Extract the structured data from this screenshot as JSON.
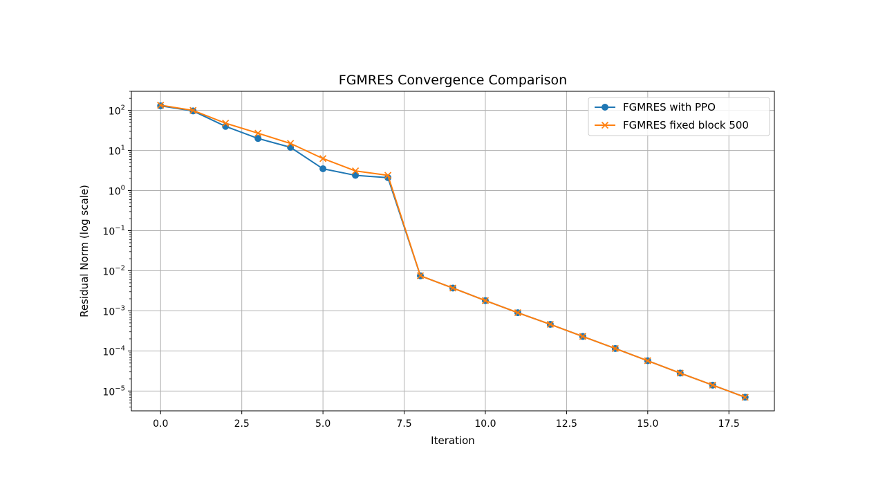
{
  "chart_data": {
    "type": "line",
    "title": "FGMRES Convergence Comparison",
    "xlabel": "Iteration",
    "ylabel": "Residual Norm (log scale)",
    "yscale": "log",
    "xlim": [
      -0.9,
      18.9
    ],
    "ylim": [
      3.2e-06,
      300
    ],
    "grid": true,
    "legend_position": "top-right",
    "x_ticks": [
      {
        "value": 0,
        "label": "0.0"
      },
      {
        "value": 2.5,
        "label": "2.5"
      },
      {
        "value": 5,
        "label": "5.0"
      },
      {
        "value": 7.5,
        "label": "7.5"
      },
      {
        "value": 10,
        "label": "10.0"
      },
      {
        "value": 12.5,
        "label": "12.5"
      },
      {
        "value": 15,
        "label": "15.0"
      },
      {
        "value": 17.5,
        "label": "17.5"
      }
    ],
    "y_ticks": [
      {
        "value": 100,
        "base": "10",
        "exp": "2"
      },
      {
        "value": 10,
        "base": "10",
        "exp": "1"
      },
      {
        "value": 1,
        "base": "10",
        "exp": "0"
      },
      {
        "value": 0.1,
        "base": "10",
        "exp": "−1"
      },
      {
        "value": 0.01,
        "base": "10",
        "exp": "−2"
      },
      {
        "value": 0.001,
        "base": "10",
        "exp": "−3"
      },
      {
        "value": 0.0001,
        "base": "10",
        "exp": "−4"
      },
      {
        "value": 1e-05,
        "base": "10",
        "exp": "−5"
      }
    ],
    "series": [
      {
        "name": "FGMRES with PPO",
        "color": "#1f77b4",
        "marker": "circle",
        "x": [
          0,
          1,
          2,
          3,
          4,
          5,
          6,
          7,
          8,
          9,
          10,
          11,
          12,
          13,
          14,
          15,
          16,
          17,
          18
        ],
        "y": [
          130,
          97,
          40,
          20,
          12,
          3.5,
          2.4,
          2.1,
          0.0075,
          0.0037,
          0.0018,
          0.0009,
          0.00046,
          0.00023,
          0.000115,
          5.7e-05,
          2.8e-05,
          1.4e-05,
          7e-06
        ]
      },
      {
        "name": "FGMRES fixed block 500",
        "color": "#ff7f0e",
        "marker": "x",
        "x": [
          0,
          1,
          2,
          3,
          4,
          5,
          6,
          7,
          8,
          9,
          10,
          11,
          12,
          13,
          14,
          15,
          16,
          17,
          18
        ],
        "y": [
          135,
          100,
          48,
          27,
          15,
          6.3,
          3.1,
          2.4,
          0.0075,
          0.0037,
          0.0018,
          0.0009,
          0.00046,
          0.00023,
          0.000115,
          5.7e-05,
          2.8e-05,
          1.4e-05,
          7e-06
        ]
      }
    ]
  }
}
